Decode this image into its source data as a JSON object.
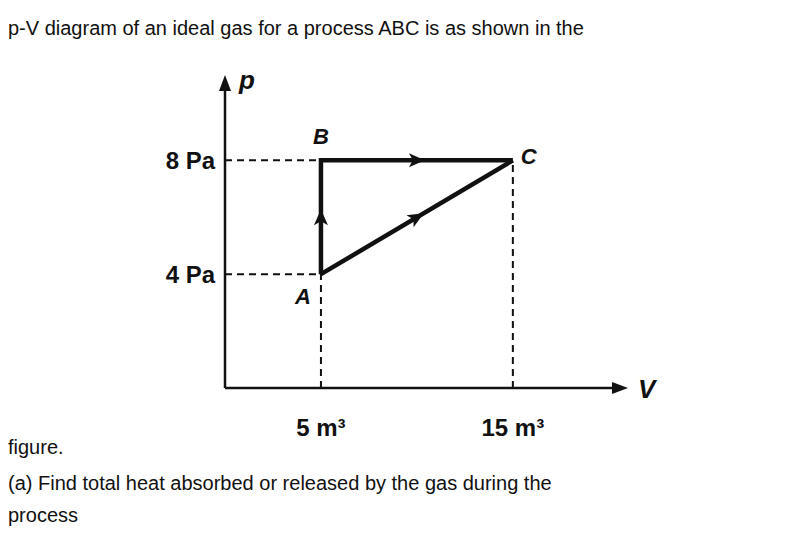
{
  "question": {
    "lines": [
      "p-V diagram of an ideal gas for a process ABC is as shown in the",
      "figure.",
      "(a) Find total heat absorbed or released by the gas during the",
      "process"
    ]
  },
  "chart_data": {
    "type": "line",
    "x_label": "V",
    "y_label": "p",
    "xlim": [
      0,
      21
    ],
    "ylim": [
      0,
      11
    ],
    "xticks": [
      {
        "value": 5,
        "label": "5 m³"
      },
      {
        "value": 15,
        "label": "15 m³"
      }
    ],
    "yticks": [
      {
        "value": 4,
        "label": "4 Pa"
      },
      {
        "value": 8,
        "label": "8 Pa"
      }
    ],
    "grid": false,
    "color": "#111111",
    "series": [
      {
        "x": [
          5,
          5,
          15
        ],
        "values": [
          4,
          8,
          8
        ],
        "line_style": "solid"
      },
      {
        "x": [
          5,
          15
        ],
        "values": [
          4,
          8
        ],
        "line_style": "solid"
      }
    ],
    "annotations": [
      {
        "text": "A",
        "x": 5,
        "y": 4
      },
      {
        "text": "B",
        "x": 5,
        "y": 8
      },
      {
        "text": "C",
        "x": 15,
        "y": 8
      }
    ]
  }
}
